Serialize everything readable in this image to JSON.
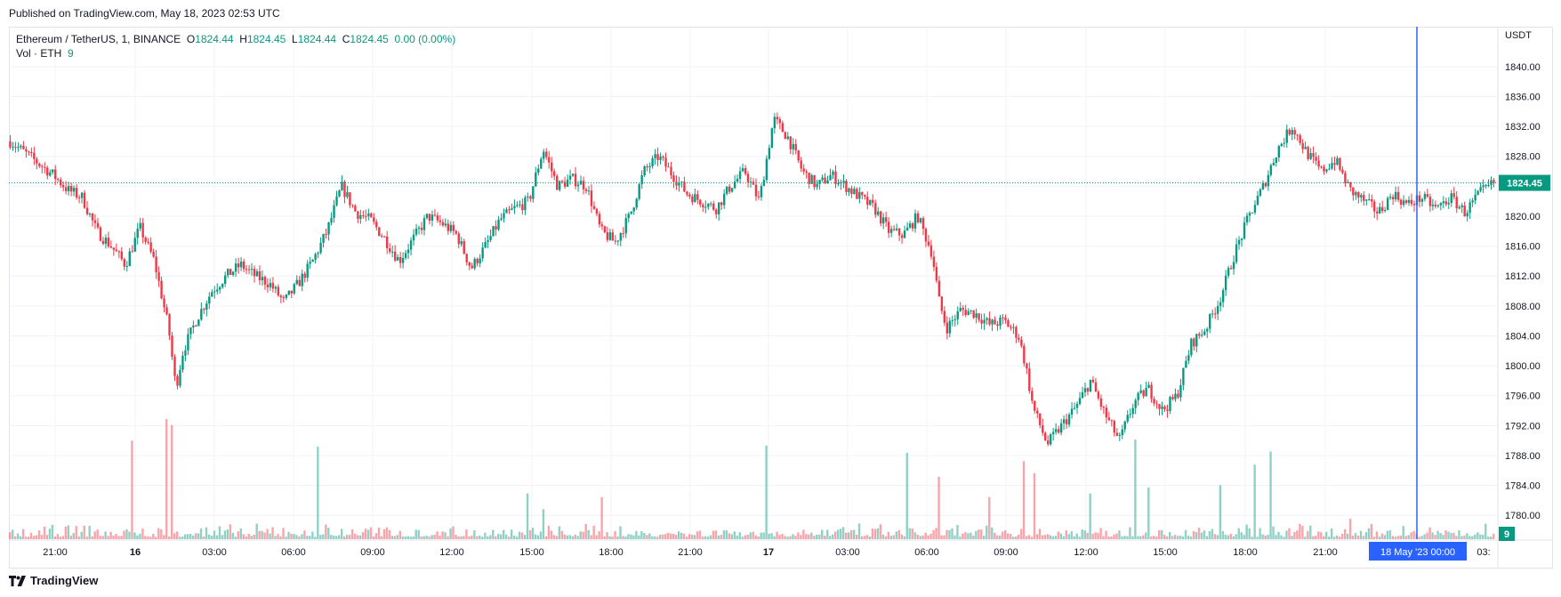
{
  "header": {
    "published": "Published on TradingView.com, May 18, 2023 02:53 UTC"
  },
  "legend": {
    "symbol": "Ethereum / TetherUS, 1, BINANCE",
    "o_label": "O",
    "o": "1824.44",
    "h_label": "H",
    "h": "1824.45",
    "l_label": "L",
    "l": "1824.44",
    "c_label": "C",
    "c": "1824.45",
    "change": "0.00 (0.00%)",
    "vol_label": "Vol · ETH",
    "vol": "9"
  },
  "footer": {
    "brand": "TradingView"
  },
  "colors": {
    "up": "#089981",
    "down": "#f23645",
    "cursor": "#2962ff",
    "grid": "#f0f3fa",
    "text": "#131722"
  },
  "chart_data": {
    "type": "candlestick",
    "title": "Ethereum / TetherUS, 1, BINANCE",
    "y_unit": "USDT",
    "ylim": [
      1778,
      1842
    ],
    "y_ticks": [
      "1840.00",
      "1836.00",
      "1832.00",
      "1828.00",
      "1824.00",
      "1820.00",
      "1816.00",
      "1812.00",
      "1808.00",
      "1804.00",
      "1800.00",
      "1796.00",
      "1792.00",
      "1788.00",
      "1784.00",
      "1780.00"
    ],
    "x_ticks": [
      "21:00",
      "16",
      "03:00",
      "06:00",
      "09:00",
      "12:00",
      "15:00",
      "18:00",
      "21:00",
      "17",
      "03:00",
      "06:00",
      "09:00",
      "12:00",
      "15:00",
      "18:00",
      "21:00",
      "03:"
    ],
    "bold_x_ticks": [
      "16",
      "17"
    ],
    "last_price": "1824.45",
    "last_volume": "9",
    "crosshair_label": "18 May '23   00:00",
    "price_path": [
      [
        0,
        1830
      ],
      [
        1,
        1828.5
      ],
      [
        3,
        1825.5
      ],
      [
        4,
        1823.5
      ],
      [
        5,
        1822.5
      ],
      [
        6,
        1818
      ],
      [
        7,
        1816
      ],
      [
        8,
        1813.5
      ],
      [
        9,
        1818.5
      ],
      [
        10,
        1814
      ],
      [
        11,
        1805
      ],
      [
        11.5,
        1797
      ],
      [
        12,
        1802
      ],
      [
        13,
        1806.5
      ],
      [
        14,
        1810
      ],
      [
        15,
        1812
      ],
      [
        16,
        1813.5
      ],
      [
        17,
        1812
      ],
      [
        18,
        1811
      ],
      [
        19,
        1808.5
      ],
      [
        20,
        1811
      ],
      [
        21,
        1814
      ],
      [
        22,
        1818
      ],
      [
        23,
        1824
      ],
      [
        24,
        1820.5
      ],
      [
        25,
        1819.5
      ],
      [
        26,
        1817
      ],
      [
        27,
        1814
      ],
      [
        28,
        1817
      ],
      [
        29,
        1820
      ],
      [
        30,
        1819
      ],
      [
        31,
        1817.5
      ],
      [
        32,
        1813
      ],
      [
        33,
        1816
      ],
      [
        34,
        1819.5
      ],
      [
        35,
        1821
      ],
      [
        36,
        1822
      ],
      [
        37,
        1829
      ],
      [
        38,
        1824
      ],
      [
        39,
        1825
      ],
      [
        40,
        1824
      ],
      [
        41,
        1818
      ],
      [
        42,
        1816.5
      ],
      [
        43,
        1820
      ],
      [
        44,
        1826
      ],
      [
        45,
        1828
      ],
      [
        46,
        1825.5
      ],
      [
        47,
        1823
      ],
      [
        48,
        1822
      ],
      [
        49,
        1821
      ],
      [
        50,
        1824
      ],
      [
        51,
        1826
      ],
      [
        52,
        1822
      ],
      [
        53,
        1833
      ],
      [
        54,
        1830.5
      ],
      [
        55,
        1826
      ],
      [
        56,
        1824
      ],
      [
        57,
        1825.5
      ],
      [
        58,
        1824
      ],
      [
        59,
        1822.5
      ],
      [
        60,
        1821
      ],
      [
        61,
        1818
      ],
      [
        62,
        1817.5
      ],
      [
        63,
        1820
      ],
      [
        64,
        1815
      ],
      [
        64.5,
        1808.5
      ],
      [
        65,
        1805
      ],
      [
        66,
        1807.5
      ],
      [
        67,
        1807
      ],
      [
        68,
        1805.5
      ],
      [
        69,
        1806
      ],
      [
        70,
        1804
      ],
      [
        70.5,
        1800
      ],
      [
        71,
        1794.5
      ],
      [
        72,
        1789.5
      ],
      [
        73,
        1792
      ],
      [
        74,
        1794.5
      ],
      [
        75,
        1798
      ],
      [
        76,
        1793.5
      ],
      [
        77,
        1790
      ],
      [
        78,
        1795
      ],
      [
        79,
        1797
      ],
      [
        80,
        1794
      ],
      [
        81,
        1796
      ],
      [
        82,
        1803
      ],
      [
        83,
        1805
      ],
      [
        84,
        1809
      ],
      [
        85,
        1815
      ],
      [
        86,
        1820
      ],
      [
        87,
        1824
      ],
      [
        88,
        1829
      ],
      [
        89,
        1832
      ],
      [
        90,
        1828.5
      ],
      [
        91,
        1826
      ],
      [
        92,
        1827.5
      ],
      [
        93,
        1823.5
      ],
      [
        94,
        1822
      ],
      [
        95,
        1820.5
      ],
      [
        96,
        1823
      ],
      [
        97,
        1821.5
      ],
      [
        98,
        1822.5
      ],
      [
        99,
        1821
      ],
      [
        100,
        1822.5
      ],
      [
        101,
        1820.5
      ],
      [
        102,
        1823
      ],
      [
        103,
        1824.45
      ]
    ],
    "path_units": 103,
    "volume_spikes": [
      [
        8.5,
        0.82
      ],
      [
        10.8,
        1.0
      ],
      [
        11.2,
        0.92
      ],
      [
        11.3,
        0.95
      ],
      [
        21.3,
        0.77
      ],
      [
        36,
        0.38
      ],
      [
        37,
        0.25
      ],
      [
        41,
        0.35
      ],
      [
        52.5,
        0.78
      ],
      [
        62.3,
        0.72
      ],
      [
        64.5,
        0.52
      ],
      [
        68,
        0.35
      ],
      [
        70.3,
        0.65
      ],
      [
        71.2,
        0.55
      ],
      [
        75,
        0.38
      ],
      [
        78.2,
        0.83
      ],
      [
        79,
        0.43
      ],
      [
        84,
        0.45
      ],
      [
        86.5,
        0.62
      ],
      [
        87.5,
        0.73
      ],
      [
        93,
        0.17
      ]
    ]
  }
}
